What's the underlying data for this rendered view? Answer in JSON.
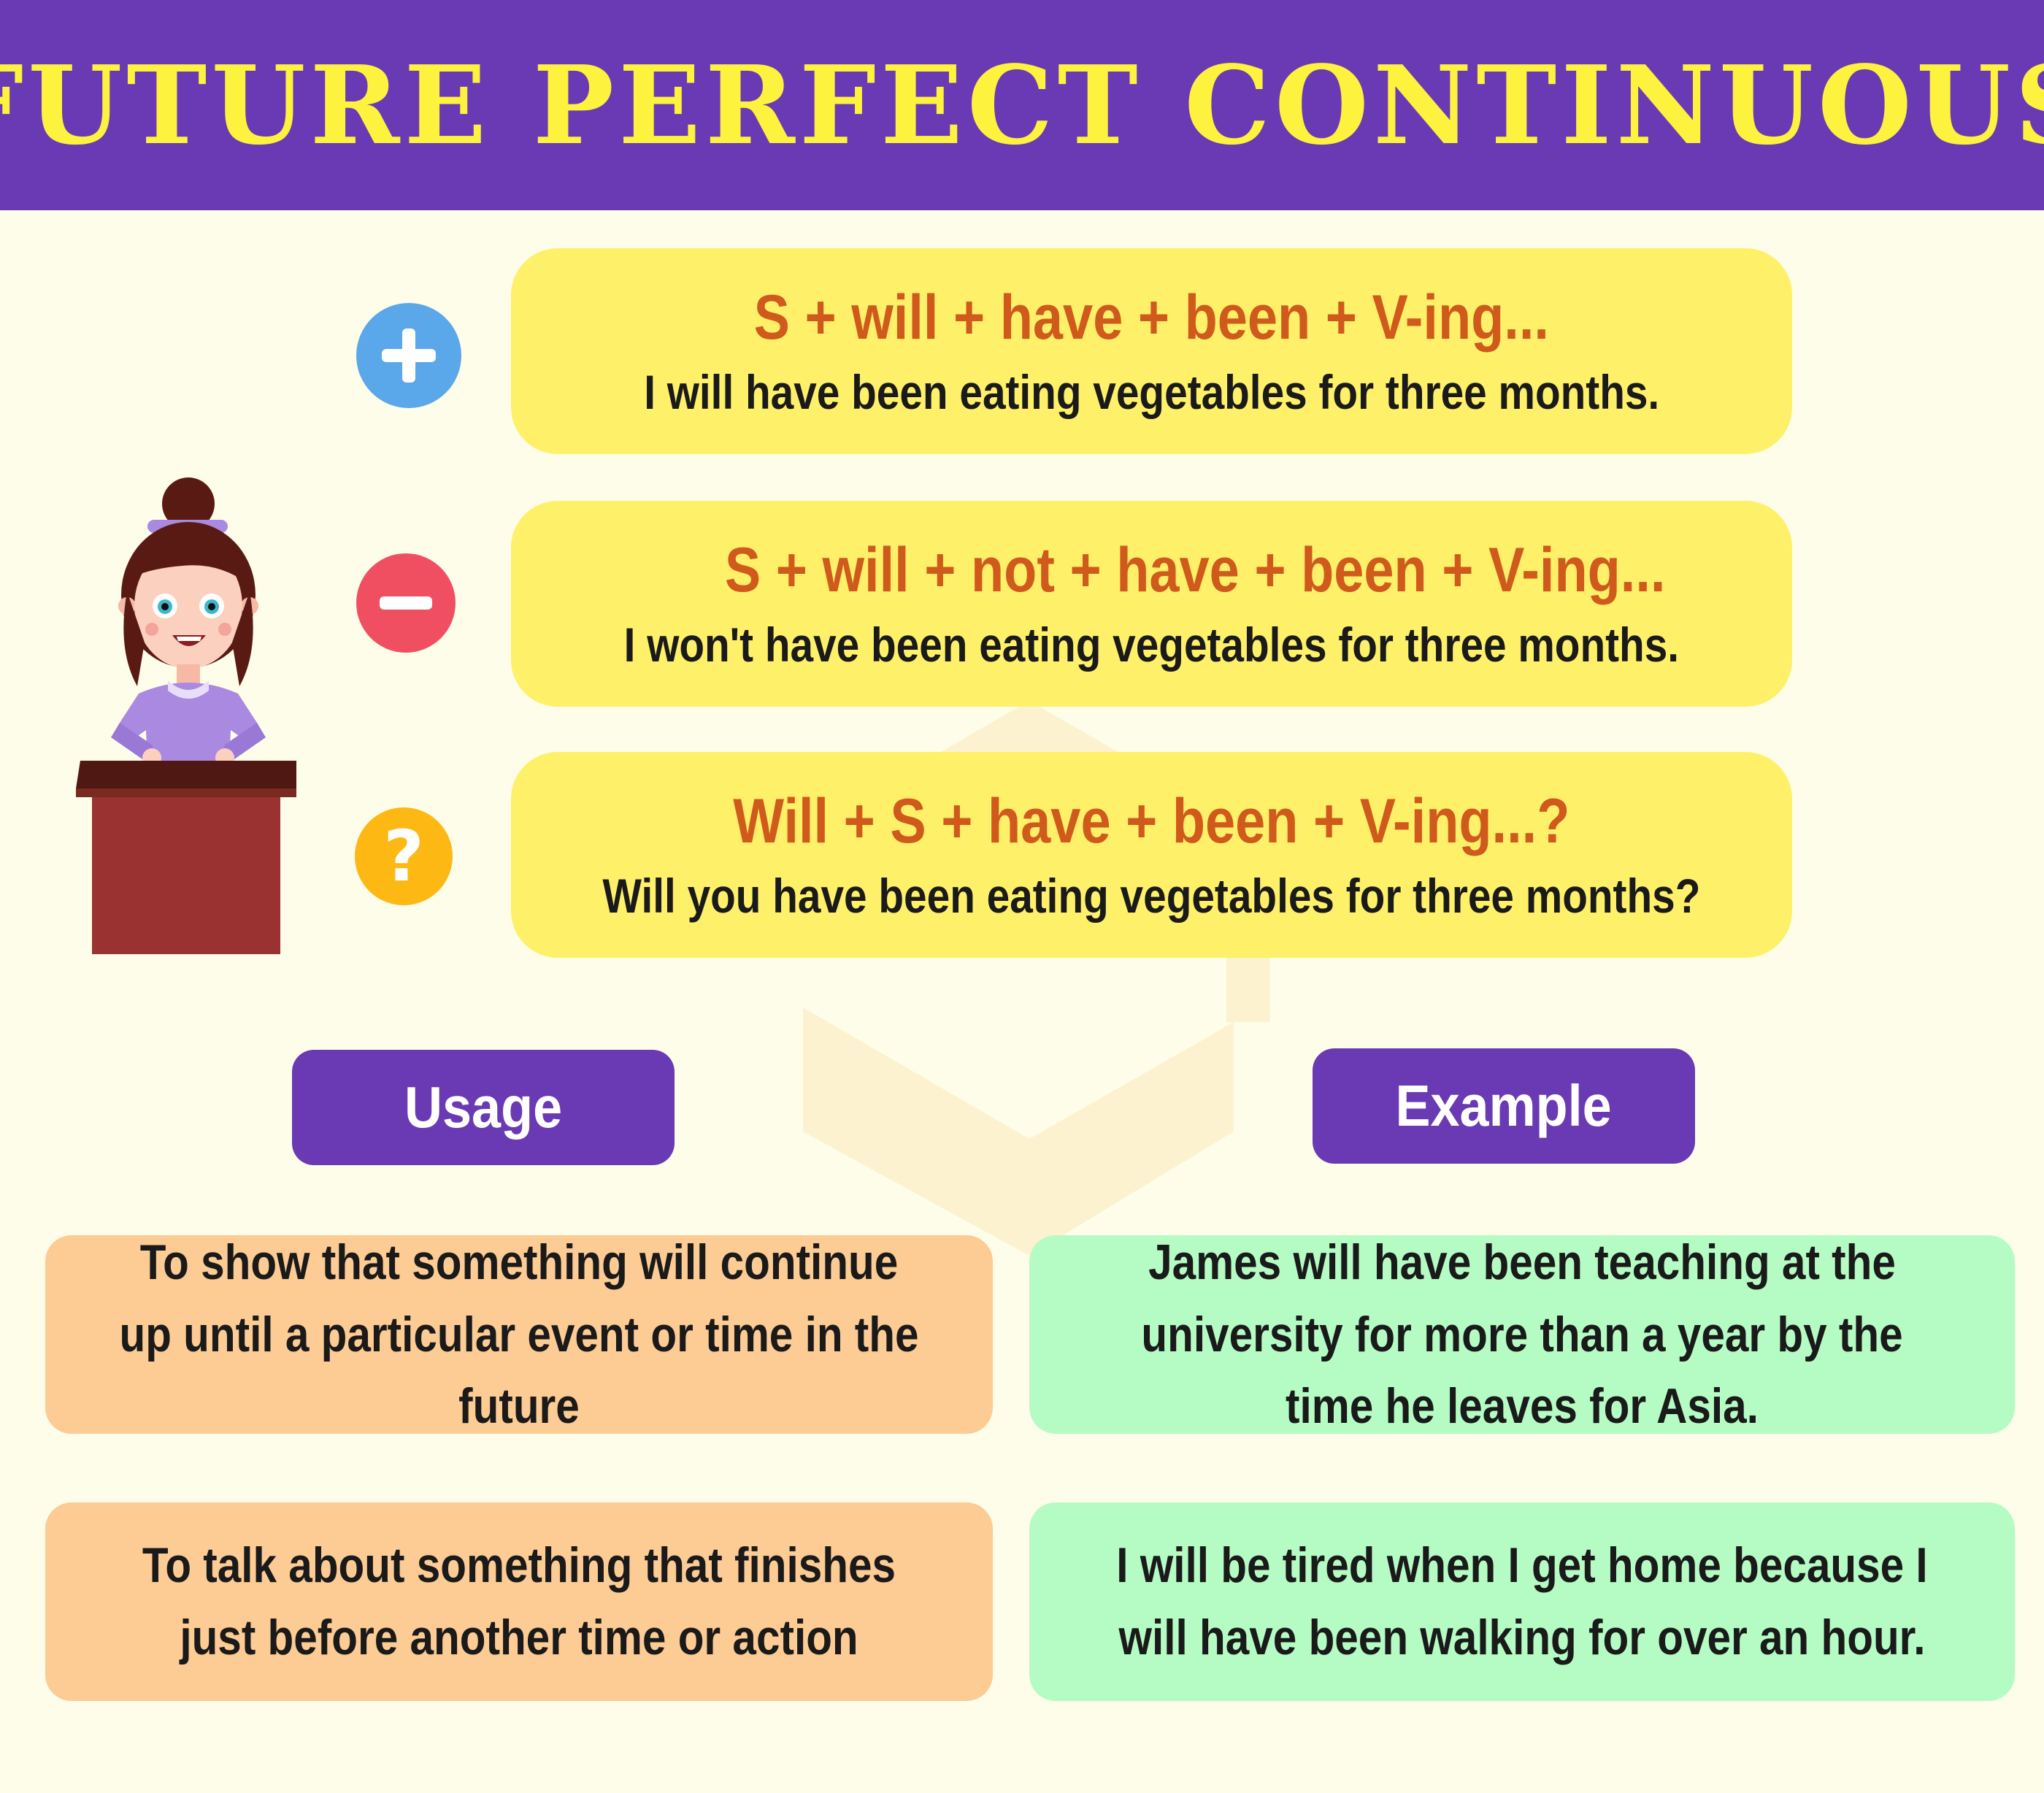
{
  "title": "FUTURE PERFECT CONTINUOUS",
  "forms": [
    {
      "icon": "plus-icon",
      "color": "#5aa8ea",
      "formula": "S + will + have + been + V-ing...",
      "example": "I will have been eating vegetables for three months."
    },
    {
      "icon": "minus-icon",
      "color": "#f04f61",
      "formula": "S + will + not + have + been + V-ing...",
      "example": "I won't have been eating vegetables for three months."
    },
    {
      "icon": "question-icon",
      "color": "#fdb814",
      "formula": "Will + S + have + been + V-ing...?",
      "example": "Will you have been eating vegetables for three months?"
    }
  ],
  "usage_label": "Usage",
  "example_label": "Example",
  "usage": [
    "To show that something will continue up until a particular event or time in the future",
    "To talk about something that finishes just before another time or action"
  ],
  "examples": [
    "James will have been teaching at the university for more than a year by the time he leaves for Asia.",
    "I will be tired when I get home because I will have been walking for over an hour."
  ],
  "colors": {
    "header": "#6a3ab4",
    "title": "#fdf23d",
    "formula_box": "#fff06a",
    "formula_text": "#cf5a1c",
    "usage_card": "#fdcb94",
    "example_card": "#b5fcc4"
  }
}
